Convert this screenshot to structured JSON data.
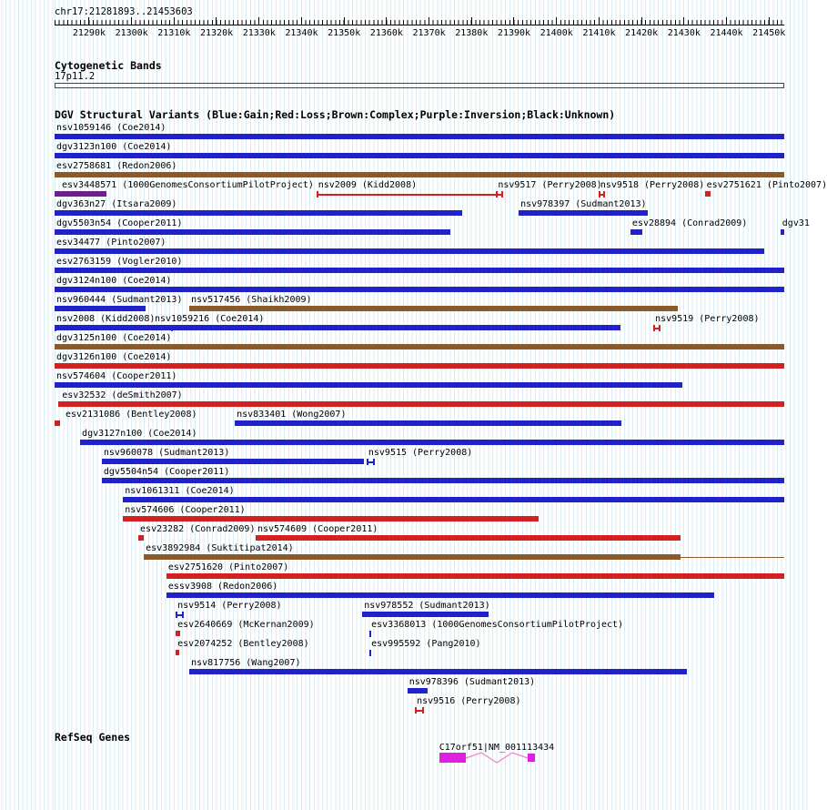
{
  "header": {
    "position": "chr17:21281893..21453603"
  },
  "ruler": {
    "ticks": [
      {
        "bp": 21290000,
        "label": "21290k"
      },
      {
        "bp": 21300000,
        "label": "21300k"
      },
      {
        "bp": 21310000,
        "label": "21310k"
      },
      {
        "bp": 21320000,
        "label": "21320k"
      },
      {
        "bp": 21330000,
        "label": "21330k"
      },
      {
        "bp": 21340000,
        "label": "21340k"
      },
      {
        "bp": 21350000,
        "label": "21350k"
      },
      {
        "bp": 21360000,
        "label": "21360k"
      },
      {
        "bp": 21370000,
        "label": "21370k"
      },
      {
        "bp": 21380000,
        "label": "21380k"
      },
      {
        "bp": 21390000,
        "label": "21390k"
      },
      {
        "bp": 21400000,
        "label": "21400k"
      },
      {
        "bp": 21410000,
        "label": "21410k"
      },
      {
        "bp": 21420000,
        "label": "21420k"
      },
      {
        "bp": 21430000,
        "label": "21430k"
      },
      {
        "bp": 21440000,
        "label": "21440k"
      },
      {
        "bp": 21450000,
        "label": "21450k"
      }
    ]
  },
  "sections": {
    "cyto_title": "Cytogenetic Bands",
    "cyto_band": "17p11.2",
    "dgv_title": "DGV Structural Variants (Blue:Gain;Red:Loss;Brown:Complex;Purple:Inversion;Black:Unknown)",
    "refseq_title": "RefSeq Genes"
  },
  "colors": {
    "gain": "#2121CC",
    "loss": "#D32020",
    "complex": "#8B5A2B",
    "inversion": "#6E1E8C",
    "unknown": "#000000",
    "gene": "#E020E0",
    "gene_line": "#EE82C8"
  },
  "chart_data": {
    "type": "bar",
    "subtype": "genome-browser-interval-tracks",
    "region": {
      "chromosome": "chr17",
      "start": 21281893,
      "end": 21453603
    },
    "dgv_rows": [
      [
        {
          "label": "nsv1059146 (Coe2014)",
          "start": 21281893,
          "end": 21453603,
          "color": "gain",
          "glyph": "box"
        }
      ],
      [
        {
          "label": "dgv3123n100 (Coe2014)",
          "start": 21281893,
          "end": 21453603,
          "color": "gain",
          "glyph": "box"
        }
      ],
      [
        {
          "label": "esv2758681 (Redon2006)",
          "start": 21281893,
          "end": 21453603,
          "color": "complex",
          "glyph": "box"
        }
      ],
      [
        {
          "label": "esv3448571 (1000GenomesConsortiumPilotProject)",
          "start": 21281893,
          "end": 21294100,
          "color": "inversion",
          "glyph": "box",
          "label_dx": 8
        },
        {
          "label": "nsv2009 (Kidd2008)",
          "start": 21343500,
          "end": 21387400,
          "color": "loss",
          "glyph": "span"
        },
        {
          "label": "nsv9517 (Perry2008)",
          "start": 21385800,
          "end": 21387500,
          "color": "loss",
          "glyph": "span"
        },
        {
          "label": "nsv9518 (Perry2008)",
          "start": 21409900,
          "end": 21411400,
          "color": "loss",
          "glyph": "span"
        },
        {
          "label": "esv2751621 (Pinto2007)",
          "start": 21434900,
          "end": 21436200,
          "color": "loss",
          "glyph": "box"
        }
      ],
      [
        {
          "label": "dgv363n27 (Itsara2009)",
          "start": 21281893,
          "end": 21377800,
          "color": "gain",
          "glyph": "box"
        },
        {
          "label": "nsv978397 (Sudmant2013)",
          "start": 21391100,
          "end": 21421500,
          "color": "gain",
          "glyph": "box"
        }
      ],
      [
        {
          "label": "dgv5503n54 (Cooper2011)",
          "start": 21281893,
          "end": 21375000,
          "color": "gain",
          "glyph": "box"
        },
        {
          "label": "esv28894 (Conrad2009)",
          "start": 21417400,
          "end": 21420200,
          "color": "gain",
          "glyph": "box"
        },
        {
          "label": "dgv31",
          "start": 21452700,
          "end": 21453603,
          "color": "gain",
          "glyph": "box"
        }
      ],
      [
        {
          "label": "esv34477 (Pinto2007)",
          "start": 21281893,
          "end": 21448900,
          "color": "gain",
          "glyph": "box"
        }
      ],
      [
        {
          "label": "esv2763159 (Vogler2010)",
          "start": 21281893,
          "end": 21453603,
          "color": "gain",
          "glyph": "box"
        }
      ],
      [
        {
          "label": "dgv3124n100 (Coe2014)",
          "start": 21281893,
          "end": 21453603,
          "color": "gain",
          "glyph": "box"
        }
      ],
      [
        {
          "label": "nsv960444 (Sudmant2013)",
          "start": 21281893,
          "end": 21303300,
          "color": "gain",
          "glyph": "box"
        },
        {
          "label": "nsv517456 (Shaikh2009)",
          "start": 21313600,
          "end": 21428500,
          "color": "complex",
          "glyph": "box"
        }
      ],
      [
        {
          "label": "nsv2008 (Kidd2008)",
          "start": 21281893,
          "end": 21309700,
          "color": "loss",
          "glyph": "span"
        },
        {
          "label": "nsv1059216 (Coe2014)",
          "start": 21281893,
          "end": 21415100,
          "color": "gain",
          "glyph": "box",
          "label_dx": 110
        },
        {
          "label": "nsv9519 (Perry2008)",
          "start": 21422800,
          "end": 21424500,
          "color": "loss",
          "glyph": "span"
        }
      ],
      [
        {
          "label": "dgv3125n100 (Coe2014)",
          "start": 21281893,
          "end": 21453603,
          "color": "complex",
          "glyph": "box"
        }
      ],
      [
        {
          "label": "dgv3126n100 (Coe2014)",
          "start": 21281893,
          "end": 21453603,
          "color": "loss",
          "glyph": "box"
        }
      ],
      [
        {
          "label": "nsv574604 (Cooper2011)",
          "start": 21281893,
          "end": 21429600,
          "color": "gain",
          "glyph": "box"
        }
      ],
      [
        {
          "label": "esv32532 (deSmith2007)",
          "start": 21282800,
          "end": 21453603,
          "color": "loss",
          "glyph": "box",
          "label_dx": 4
        }
      ],
      [
        {
          "label": "esv2131086 (Bentley2008)",
          "start": 21281893,
          "end": 21283200,
          "color": "loss",
          "glyph": "box",
          "label_dx": 12
        },
        {
          "label": "nsv833401 (Wong2007)",
          "start": 21324300,
          "end": 21415300,
          "color": "gain",
          "glyph": "box"
        }
      ],
      [
        {
          "label": "dgv3127n100 (Coe2014)",
          "start": 21287900,
          "end": 21453603,
          "color": "gain",
          "glyph": "box"
        }
      ],
      [
        {
          "label": "nsv960078 (Sudmant2013)",
          "start": 21293000,
          "end": 21354700,
          "color": "gain",
          "glyph": "box"
        },
        {
          "label": "nsv9515 (Perry2008)",
          "start": 21355300,
          "end": 21357300,
          "color": "gain",
          "glyph": "span"
        }
      ],
      [
        {
          "label": "dgv5504n54 (Cooper2011)",
          "start": 21293000,
          "end": 21453603,
          "color": "gain",
          "glyph": "box"
        }
      ],
      [
        {
          "label": "nsv1061311 (Coe2014)",
          "start": 21298000,
          "end": 21453603,
          "color": "gain",
          "glyph": "box"
        }
      ],
      [
        {
          "label": "nsv574606 (Cooper2011)",
          "start": 21298000,
          "end": 21395800,
          "color": "loss",
          "glyph": "box"
        }
      ],
      [
        {
          "label": "esv23282 (Conrad2009)",
          "start": 21301600,
          "end": 21302900,
          "color": "loss",
          "glyph": "box"
        },
        {
          "label": "nsv574609 (Cooper2011)",
          "start": 21329200,
          "end": 21429200,
          "color": "loss",
          "glyph": "box"
        }
      ],
      [
        {
          "label": "esv3892984 (Suktitipat2014)",
          "start": 21302900,
          "end": 21429200,
          "color": "complex",
          "glyph": "box",
          "tail_to": 21453603
        }
      ],
      [
        {
          "label": "esv2751620 (Pinto2007)",
          "start": 21308200,
          "end": 21453603,
          "color": "loss",
          "glyph": "box"
        }
      ],
      [
        {
          "label": "essv3908 (Redon2006)",
          "start": 21308200,
          "end": 21437100,
          "color": "gain",
          "glyph": "box"
        }
      ],
      [
        {
          "label": "nsv9514 (Perry2008)",
          "start": 21310400,
          "end": 21312300,
          "color": "gain",
          "glyph": "span"
        },
        {
          "label": "nsv978552 (Sudmant2013)",
          "start": 21354300,
          "end": 21384000,
          "color": "gain",
          "glyph": "box"
        }
      ],
      [
        {
          "label": "esv2640669 (McKernan2009)",
          "start": 21310400,
          "end": 21311400,
          "color": "loss",
          "glyph": "box"
        },
        {
          "label": "esv3368013 (1000GenomesConsortiumPilotProject)",
          "start": 21356000,
          "end": 21356800,
          "color": "gain",
          "glyph": "tick"
        }
      ],
      [
        {
          "label": "esv2074252 (Bentley2008)",
          "start": 21310400,
          "end": 21311200,
          "color": "loss",
          "glyph": "box"
        },
        {
          "label": "esv995592 (Pang2010)",
          "start": 21356000,
          "end": 21356600,
          "color": "gain",
          "glyph": "tick"
        }
      ],
      [
        {
          "label": "nsv817756 (Wang2007)",
          "start": 21313600,
          "end": 21430700,
          "color": "gain",
          "glyph": "box"
        }
      ],
      [
        {
          "label": "nsv978396 (Sudmant2013)",
          "start": 21364900,
          "end": 21369700,
          "color": "gain",
          "glyph": "box"
        }
      ],
      [
        {
          "label": "nsv9516 (Perry2008)",
          "start": 21366700,
          "end": 21368800,
          "color": "loss",
          "glyph": "span"
        }
      ]
    ],
    "gene": {
      "label": "C17orf51|NM_001113434",
      "exons": [
        {
          "start": 21372400,
          "end": 21378600
        },
        {
          "start": 21393200,
          "end": 21394900
        }
      ],
      "intron": {
        "start": 21378600,
        "end": 21393200
      }
    }
  }
}
